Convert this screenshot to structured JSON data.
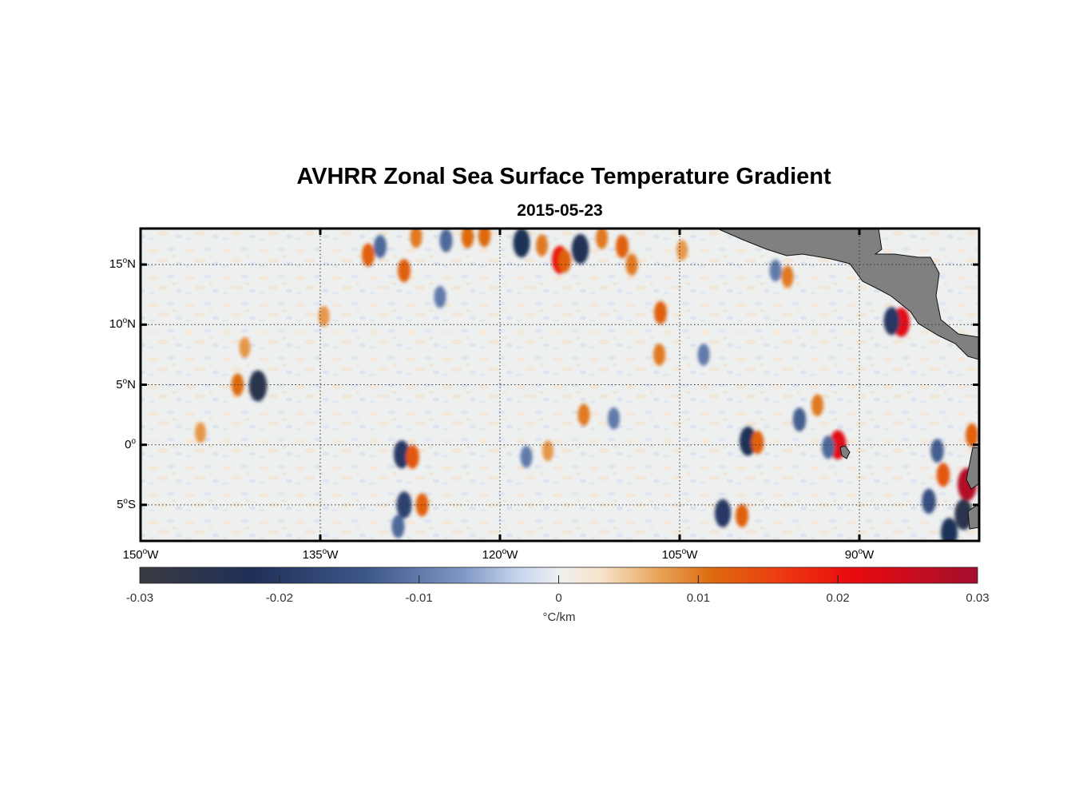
{
  "title": "AVHRR Zonal Sea Surface Temperature Gradient",
  "subtitle": "2015-05-23",
  "map": {
    "lon_range": [
      -150,
      -80
    ],
    "lat_range": [
      -8,
      18
    ],
    "land_color": "#808080",
    "lat_ticks": [
      {
        "value": 15,
        "deg": "15",
        "hemi": "N"
      },
      {
        "value": 10,
        "deg": "10",
        "hemi": "N"
      },
      {
        "value": 5,
        "deg": "5",
        "hemi": "N"
      },
      {
        "value": 0,
        "deg": "0",
        "hemi": ""
      },
      {
        "value": -5,
        "deg": "5",
        "hemi": "S"
      }
    ],
    "lon_ticks": [
      {
        "value": -150,
        "deg": "150",
        "hemi": "W"
      },
      {
        "value": -135,
        "deg": "135",
        "hemi": "W"
      },
      {
        "value": -120,
        "deg": "120",
        "hemi": "W"
      },
      {
        "value": -105,
        "deg": "105",
        "hemi": "W"
      },
      {
        "value": -90,
        "deg": "90",
        "hemi": "W"
      }
    ],
    "features": [
      {
        "lon": -140.2,
        "lat": 4.9,
        "value": -0.025
      },
      {
        "lon": -141.9,
        "lat": 5.0,
        "value": 0.011
      },
      {
        "lon": -141.3,
        "lat": 8.1,
        "value": 0.008
      },
      {
        "lon": -128.2,
        "lat": -0.8,
        "value": -0.02
      },
      {
        "lon": -127.3,
        "lat": -1.0,
        "value": 0.013
      },
      {
        "lon": -128.0,
        "lat": -5.0,
        "value": -0.018
      },
      {
        "lon": -126.5,
        "lat": -5.0,
        "value": 0.012
      },
      {
        "lon": -128.5,
        "lat": -6.8,
        "value": -0.012
      },
      {
        "lon": -131.0,
        "lat": 15.8,
        "value": 0.012
      },
      {
        "lon": -130.0,
        "lat": 16.5,
        "value": -0.012
      },
      {
        "lon": -128.0,
        "lat": 14.5,
        "value": 0.012
      },
      {
        "lon": -127.0,
        "lat": 17.3,
        "value": 0.01
      },
      {
        "lon": -124.5,
        "lat": 17.0,
        "value": -0.012
      },
      {
        "lon": -122.7,
        "lat": 17.3,
        "value": 0.011
      },
      {
        "lon": -121.3,
        "lat": 17.4,
        "value": 0.011
      },
      {
        "lon": -118.2,
        "lat": 16.8,
        "value": -0.022
      },
      {
        "lon": -116.5,
        "lat": 16.6,
        "value": 0.01
      },
      {
        "lon": -115.0,
        "lat": 15.4,
        "value": 0.02
      },
      {
        "lon": -114.6,
        "lat": 15.3,
        "value": 0.012
      },
      {
        "lon": -113.3,
        "lat": 16.3,
        "value": -0.023
      },
      {
        "lon": -111.5,
        "lat": 17.2,
        "value": 0.01
      },
      {
        "lon": -109.8,
        "lat": 16.5,
        "value": 0.012
      },
      {
        "lon": -109.0,
        "lat": 15.0,
        "value": 0.01
      },
      {
        "lon": -106.6,
        "lat": 11.0,
        "value": 0.012
      },
      {
        "lon": -106.7,
        "lat": 7.5,
        "value": 0.01
      },
      {
        "lon": -104.8,
        "lat": 16.2,
        "value": 0.008
      },
      {
        "lon": -113.0,
        "lat": 2.5,
        "value": 0.01
      },
      {
        "lon": -110.5,
        "lat": 2.2,
        "value": -0.01
      },
      {
        "lon": -101.4,
        "lat": -5.7,
        "value": -0.02
      },
      {
        "lon": -99.8,
        "lat": -5.9,
        "value": 0.012
      },
      {
        "lon": -99.3,
        "lat": 0.3,
        "value": -0.022
      },
      {
        "lon": -98.5,
        "lat": 0.2,
        "value": 0.012
      },
      {
        "lon": -95.0,
        "lat": 2.1,
        "value": -0.013
      },
      {
        "lon": -91.8,
        "lat": 0.0,
        "value": 0.022
      },
      {
        "lon": -92.6,
        "lat": -0.2,
        "value": -0.012
      },
      {
        "lon": -93.5,
        "lat": 3.3,
        "value": 0.01
      },
      {
        "lon": -86.5,
        "lat": 10.2,
        "value": 0.022
      },
      {
        "lon": -87.3,
        "lat": 10.3,
        "value": -0.02
      },
      {
        "lon": -83.0,
        "lat": -2.5,
        "value": 0.013
      },
      {
        "lon": -81.0,
        "lat": -3.3,
        "value": 0.028
      },
      {
        "lon": -81.3,
        "lat": -5.8,
        "value": -0.025
      },
      {
        "lon": -82.5,
        "lat": -7.3,
        "value": -0.022
      },
      {
        "lon": -84.2,
        "lat": -4.7,
        "value": -0.015
      },
      {
        "lon": -80.6,
        "lat": 0.8,
        "value": 0.012
      },
      {
        "lon": -83.5,
        "lat": -0.5,
        "value": -0.013
      },
      {
        "lon": -117.8,
        "lat": -1.0,
        "value": -0.01
      },
      {
        "lon": -116.0,
        "lat": -0.5,
        "value": 0.008
      },
      {
        "lon": -145.0,
        "lat": 1.0,
        "value": 0.008
      },
      {
        "lon": -125.0,
        "lat": 12.3,
        "value": -0.01
      },
      {
        "lon": -134.7,
        "lat": 10.7,
        "value": 0.008
      },
      {
        "lon": -103.0,
        "lat": 7.5,
        "value": -0.01
      },
      {
        "lon": -97.0,
        "lat": 14.5,
        "value": -0.01
      },
      {
        "lon": -96.0,
        "lat": 14.0,
        "value": 0.01
      }
    ]
  },
  "colorbar": {
    "unit": "°C/km",
    "tick_labels": [
      "-0.03",
      "-0.02",
      "-0.01",
      "0",
      "0.01",
      "0.02",
      "0.03"
    ],
    "stops": [
      {
        "value": -0.03,
        "color": "#3a3a40"
      },
      {
        "value": -0.022,
        "color": "#1f3057"
      },
      {
        "value": -0.014,
        "color": "#3c5588"
      },
      {
        "value": -0.007,
        "color": "#7c95c3"
      },
      {
        "value": -0.003,
        "color": "#c3d4ec"
      },
      {
        "value": 0.0,
        "color": "#eef0f0"
      },
      {
        "value": 0.003,
        "color": "#f7e4cc"
      },
      {
        "value": 0.007,
        "color": "#e9a65c"
      },
      {
        "value": 0.011,
        "color": "#dd6a0e"
      },
      {
        "value": 0.016,
        "color": "#ec3a10"
      },
      {
        "value": 0.021,
        "color": "#ea0a0e"
      },
      {
        "value": 0.03,
        "color": "#a30f2e"
      }
    ]
  }
}
